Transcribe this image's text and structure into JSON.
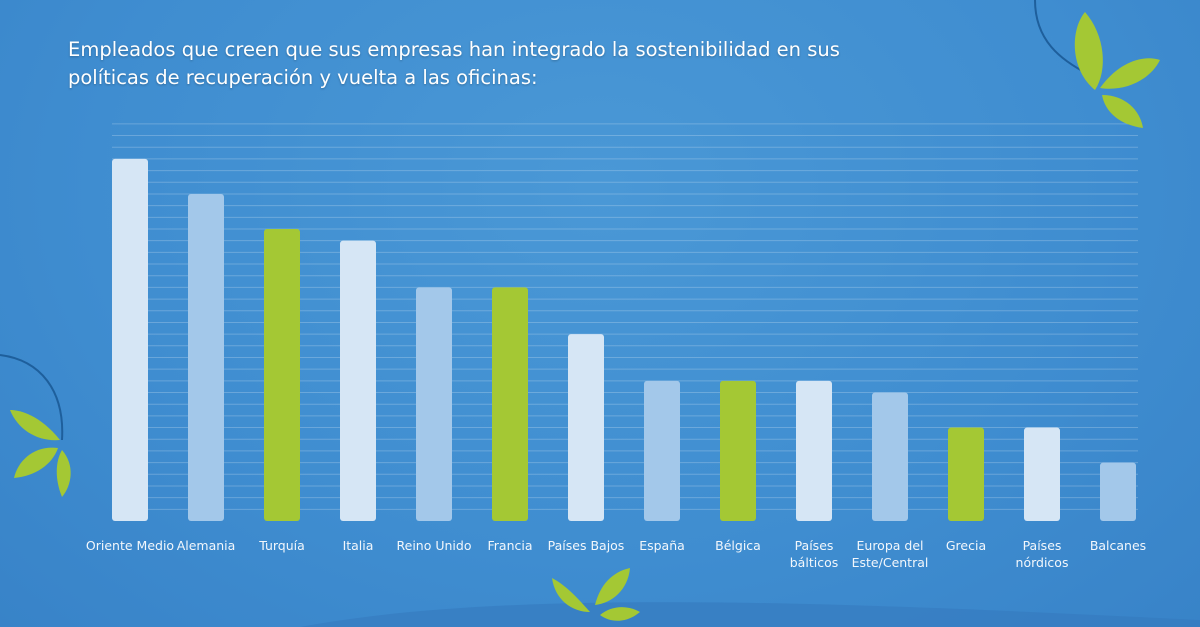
{
  "chart_data": {
    "type": "bar",
    "title": "Empleados que creen que sus empresas han integrado la sostenibilidad en sus políticas de recuperación y vuelta a las oficinas:",
    "categories": [
      [
        "Oriente Medio"
      ],
      [
        "Alemania"
      ],
      [
        "Turquía"
      ],
      [
        "Italia"
      ],
      [
        "Reino Unido"
      ],
      [
        "Francia"
      ],
      [
        "Países Bajos"
      ],
      [
        "España"
      ],
      [
        "Bélgica"
      ],
      [
        "Países",
        "bálticos"
      ],
      [
        "Europa del",
        "Este/Central"
      ],
      [
        "Grecia"
      ],
      [
        "Países",
        "nórdicos"
      ],
      [
        "Balcanes"
      ]
    ],
    "values": [
      31,
      28,
      25,
      24,
      20,
      20,
      16,
      12,
      12,
      12,
      11,
      8,
      8,
      5
    ],
    "ylim": [
      0,
      34
    ],
    "grid": true,
    "xlabel": "",
    "ylabel": "",
    "bar_colors": [
      "#d6e6f5",
      "#a3c8ea",
      "#a4c834"
    ],
    "background": "#3f8dd0",
    "decorations": [
      "leaf-icon",
      "leaf-icon",
      "leaf-icon"
    ]
  }
}
